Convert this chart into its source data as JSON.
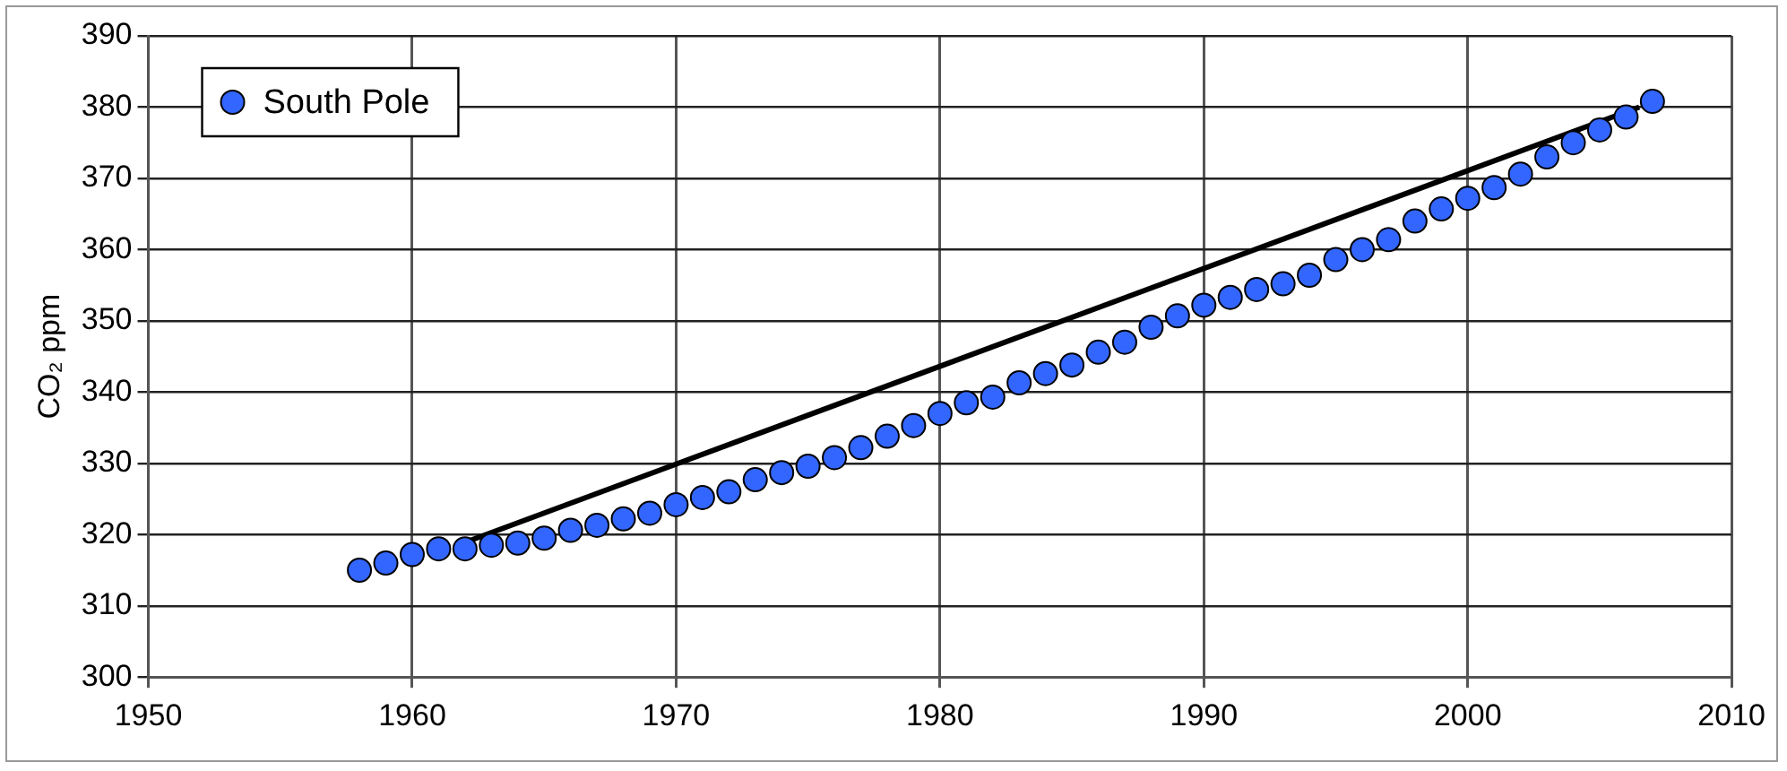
{
  "chart_data": {
    "type": "scatter",
    "ylabel": "CO₂ ppm",
    "xlim": [
      1950,
      2010
    ],
    "xticks": [
      1950,
      1960,
      1970,
      1980,
      1990,
      2000,
      2010
    ],
    "ylim": [
      300,
      390
    ],
    "yticks": [
      300,
      310,
      320,
      330,
      340,
      350,
      360,
      370,
      380,
      390
    ],
    "grid": true,
    "legend": "top left",
    "marker": "circle",
    "series": [
      {
        "name": "South Pole",
        "type": "scatter",
        "color": "#3366ff",
        "x": [
          1958,
          1959,
          1960,
          1961,
          1962,
          1963,
          1964,
          1965,
          1966,
          1967,
          1968,
          1969,
          1970,
          1971,
          1972,
          1973,
          1974,
          1975,
          1976,
          1977,
          1978,
          1979,
          1980,
          1981,
          1982,
          1983,
          1984,
          1985,
          1986,
          1987,
          1988,
          1989,
          1990,
          1991,
          1992,
          1993,
          1994,
          1995,
          1996,
          1997,
          1998,
          1999,
          2000,
          2001,
          2002,
          2003,
          2004,
          2005,
          2006,
          2007
        ],
        "values": [
          315,
          316,
          317.2,
          318,
          318,
          318.5,
          318.8,
          319.5,
          320.6,
          321.3,
          322.2,
          323,
          324.2,
          325.2,
          326,
          327.7,
          328.7,
          329.6,
          330.8,
          332.2,
          333.8,
          335.3,
          337,
          338.5,
          339.3,
          341.3,
          342.6,
          343.8,
          345.6,
          347,
          349.1,
          350.7,
          352.2,
          353.3,
          354.4,
          355.2,
          356.4,
          358.6,
          360,
          361.4,
          364,
          365.7,
          367.2,
          368.7,
          370.6,
          373,
          375,
          376.8,
          378.6,
          380.8
        ]
      },
      {
        "type": "line",
        "color": "#000000",
        "marker": "none",
        "x": [
          1962,
          2006.5
        ],
        "values": [
          318.9,
          380
        ]
      }
    ]
  }
}
